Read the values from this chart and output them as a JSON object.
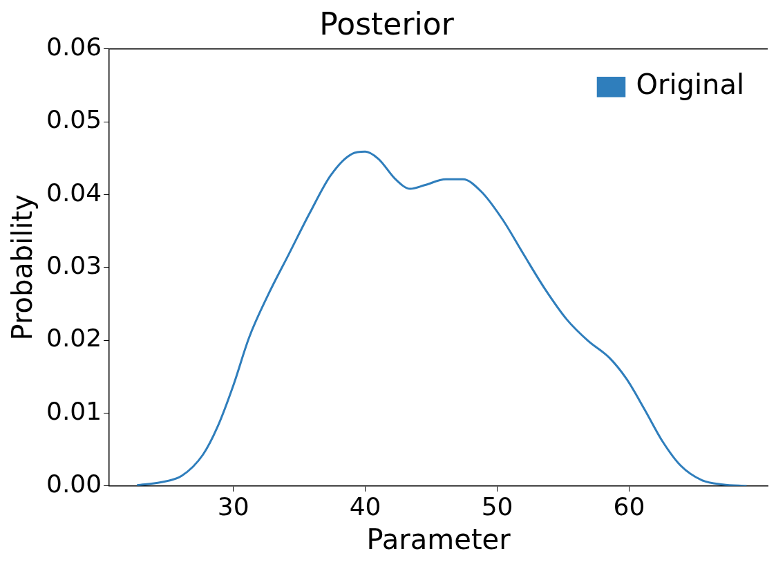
{
  "chart_data": {
    "type": "line",
    "title": "Posterior",
    "xlabel": "Parameter",
    "ylabel": "Probability",
    "xlim": [
      20.6,
      70.5
    ],
    "xticks": [
      30,
      40,
      50,
      60
    ],
    "ylim": [
      0,
      0.06
    ],
    "yticks": [
      {
        "value": 0,
        "label": "0.00"
      },
      {
        "value": 0.01,
        "label": "0.01"
      },
      {
        "value": 0.02,
        "label": "0.02"
      },
      {
        "value": 0.03,
        "label": "0.03"
      },
      {
        "value": 0.04,
        "label": "0.04"
      },
      {
        "value": 0.05,
        "label": "0.05"
      },
      {
        "value": 0.06,
        "label": "0.06"
      }
    ],
    "grid": false,
    "legend": "top right",
    "marker": "none",
    "line_style": "solid",
    "series": [
      {
        "name": "Original",
        "color": "#2f7ebc",
        "x": [
          22.7,
          24.5,
          26.1,
          27.7,
          28.8,
          30,
          31.2,
          32.6,
          34.2,
          35.8,
          37.4,
          39.0,
          40.0,
          41.0,
          42.3,
          43.4,
          44.5,
          46.1,
          47.4,
          48.8,
          50.4,
          52.0,
          53.6,
          55.3,
          56.9,
          58.5,
          59.8,
          61.2,
          62.5,
          63.9,
          65.5,
          67.1,
          68.9
        ],
        "values": [
          0.0001,
          0.0005,
          0.0014,
          0.0043,
          0.0081,
          0.0138,
          0.0204,
          0.0261,
          0.0318,
          0.0375,
          0.0427,
          0.0456,
          0.0459,
          0.0449,
          0.0421,
          0.0408,
          0.0413,
          0.0421,
          0.0421,
          0.0404,
          0.0366,
          0.0318,
          0.0271,
          0.0228,
          0.0199,
          0.0176,
          0.0147,
          0.0104,
          0.0062,
          0.0028,
          0.0008,
          0.0002,
          0.0
        ]
      }
    ]
  }
}
